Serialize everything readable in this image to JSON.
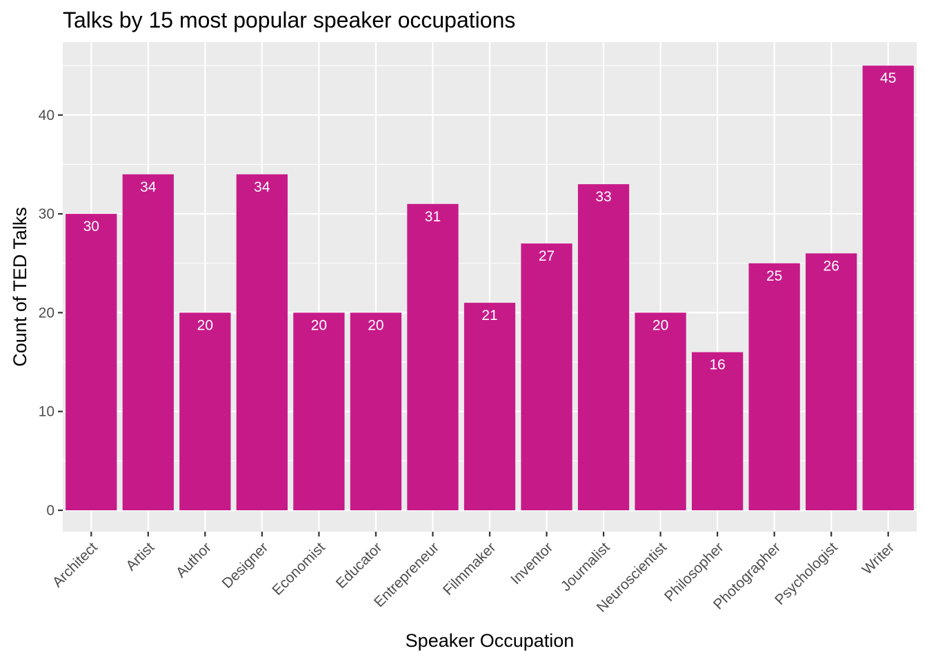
{
  "chart_data": {
    "type": "bar",
    "title": "Talks by 15 most popular speaker occupations",
    "xlabel": "Speaker Occupation",
    "ylabel": "Count of TED Talks",
    "categories": [
      "Architect",
      "Artist",
      "Author",
      "Designer",
      "Economist",
      "Educator",
      "Entrepreneur",
      "Filmmaker",
      "Inventor",
      "Journalist",
      "Neuroscientist",
      "Philosopher",
      "Photographer",
      "Psychologist",
      "Writer"
    ],
    "values": [
      30,
      34,
      20,
      34,
      20,
      20,
      31,
      21,
      27,
      33,
      20,
      16,
      25,
      26,
      45
    ],
    "ylim": [
      0,
      47
    ],
    "yticks": [
      0,
      10,
      20,
      30,
      40
    ],
    "grid": true,
    "data_labels": true,
    "bar_color": "#C71A89",
    "panel_color": "#EBEBEB"
  }
}
